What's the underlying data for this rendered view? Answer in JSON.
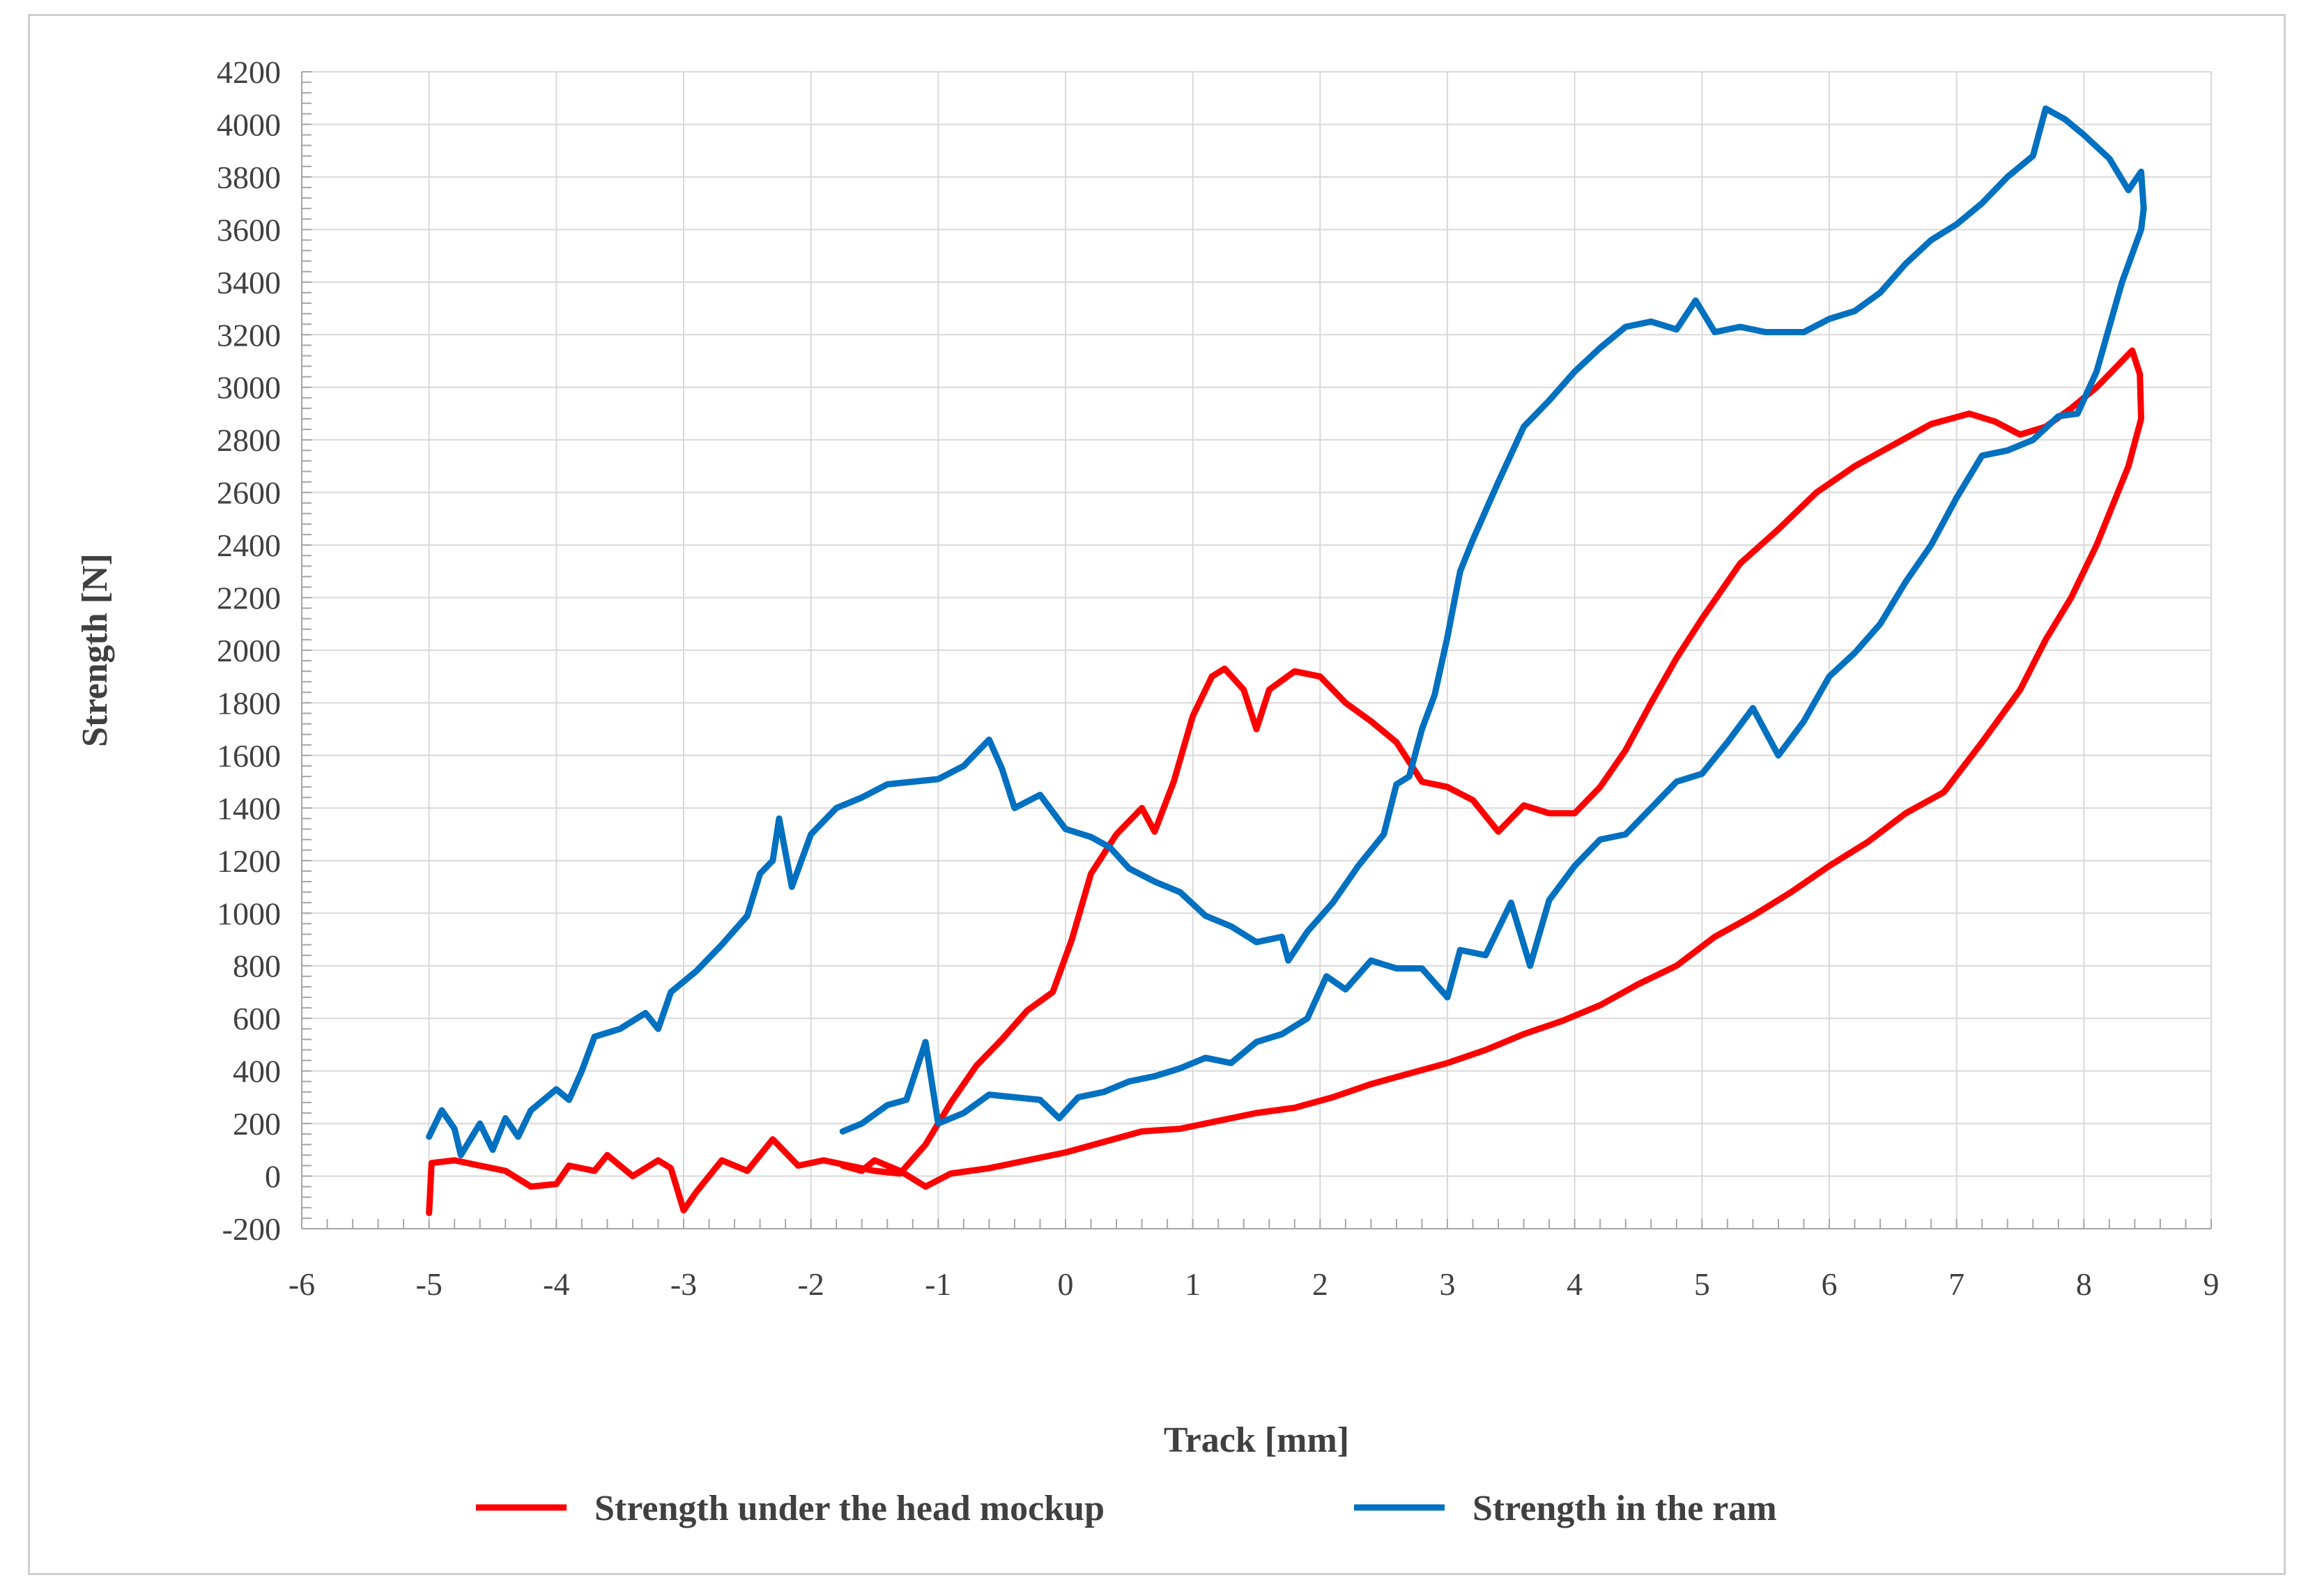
{
  "chart_data": {
    "type": "line",
    "title": "",
    "xlabel": "Track [mm]",
    "ylabel": "Strength [N]",
    "xlim": [
      -6,
      9
    ],
    "ylim": [
      -200,
      4200
    ],
    "x_ticks": [
      -6,
      -5,
      -4,
      -3,
      -2,
      -1,
      0,
      1,
      2,
      3,
      4,
      5,
      6,
      7,
      8,
      9
    ],
    "y_ticks": [
      -200,
      0,
      200,
      400,
      600,
      800,
      1000,
      1200,
      1400,
      1600,
      1800,
      2000,
      2200,
      2400,
      2600,
      2800,
      3000,
      3200,
      3400,
      3600,
      3800,
      4000,
      4200
    ],
    "grid": true,
    "legend": "bottom",
    "series": [
      {
        "name": "Strength under the head mockup",
        "color": "#ff0000",
        "points": [
          [
            -5.0,
            -140
          ],
          [
            -4.98,
            50
          ],
          [
            -4.8,
            60
          ],
          [
            -4.6,
            40
          ],
          [
            -4.4,
            20
          ],
          [
            -4.2,
            -40
          ],
          [
            -4.0,
            -30
          ],
          [
            -3.9,
            40
          ],
          [
            -3.7,
            20
          ],
          [
            -3.6,
            80
          ],
          [
            -3.4,
            0
          ],
          [
            -3.2,
            60
          ],
          [
            -3.1,
            30
          ],
          [
            -3.0,
            -130
          ],
          [
            -2.9,
            -60
          ],
          [
            -2.7,
            60
          ],
          [
            -2.5,
            20
          ],
          [
            -2.3,
            140
          ],
          [
            -2.1,
            40
          ],
          [
            -1.9,
            60
          ],
          [
            -1.7,
            40
          ],
          [
            -1.5,
            20
          ],
          [
            -1.3,
            10
          ],
          [
            -1.1,
            120
          ],
          [
            -0.9,
            280
          ],
          [
            -0.7,
            420
          ],
          [
            -0.5,
            520
          ],
          [
            -0.3,
            630
          ],
          [
            -0.1,
            700
          ],
          [
            0.05,
            900
          ],
          [
            0.2,
            1150
          ],
          [
            0.4,
            1300
          ],
          [
            0.6,
            1400
          ],
          [
            0.7,
            1310
          ],
          [
            0.85,
            1500
          ],
          [
            1.0,
            1750
          ],
          [
            1.15,
            1900
          ],
          [
            1.25,
            1930
          ],
          [
            1.4,
            1850
          ],
          [
            1.5,
            1700
          ],
          [
            1.6,
            1850
          ],
          [
            1.8,
            1920
          ],
          [
            2.0,
            1900
          ],
          [
            2.2,
            1800
          ],
          [
            2.4,
            1730
          ],
          [
            2.6,
            1650
          ],
          [
            2.8,
            1500
          ],
          [
            3.0,
            1480
          ],
          [
            3.2,
            1430
          ],
          [
            3.4,
            1310
          ],
          [
            3.6,
            1410
          ],
          [
            3.8,
            1380
          ],
          [
            4.0,
            1380
          ],
          [
            4.2,
            1480
          ],
          [
            4.4,
            1620
          ],
          [
            4.6,
            1800
          ],
          [
            4.8,
            1970
          ],
          [
            5.0,
            2120
          ],
          [
            5.3,
            2330
          ],
          [
            5.6,
            2460
          ],
          [
            5.9,
            2600
          ],
          [
            6.2,
            2700
          ],
          [
            6.5,
            2780
          ],
          [
            6.8,
            2860
          ],
          [
            7.1,
            2900
          ],
          [
            7.3,
            2870
          ],
          [
            7.5,
            2820
          ],
          [
            7.7,
            2850
          ],
          [
            7.9,
            2920
          ],
          [
            8.1,
            3000
          ],
          [
            8.3,
            3100
          ],
          [
            8.38,
            3140
          ],
          [
            8.44,
            3050
          ],
          [
            8.45,
            2880
          ],
          [
            8.35,
            2700
          ],
          [
            8.1,
            2400
          ],
          [
            7.9,
            2200
          ],
          [
            7.7,
            2040
          ],
          [
            7.5,
            1850
          ],
          [
            7.2,
            1650
          ],
          [
            6.9,
            1460
          ],
          [
            6.6,
            1380
          ],
          [
            6.3,
            1270
          ],
          [
            6.0,
            1180
          ],
          [
            5.7,
            1080
          ],
          [
            5.4,
            990
          ],
          [
            5.1,
            910
          ],
          [
            4.8,
            800
          ],
          [
            4.5,
            730
          ],
          [
            4.2,
            650
          ],
          [
            3.9,
            590
          ],
          [
            3.6,
            540
          ],
          [
            3.3,
            480
          ],
          [
            3.0,
            430
          ],
          [
            2.7,
            390
          ],
          [
            2.4,
            350
          ],
          [
            2.1,
            300
          ],
          [
            1.8,
            260
          ],
          [
            1.5,
            240
          ],
          [
            1.2,
            210
          ],
          [
            0.9,
            180
          ],
          [
            0.6,
            170
          ],
          [
            0.3,
            130
          ],
          [
            0.0,
            90
          ],
          [
            -0.3,
            60
          ],
          [
            -0.6,
            30
          ],
          [
            -0.9,
            10
          ],
          [
            -1.1,
            -40
          ],
          [
            -1.3,
            20
          ],
          [
            -1.5,
            60
          ],
          [
            -1.6,
            20
          ],
          [
            -1.75,
            40
          ]
        ]
      },
      {
        "name": "Strength in the ram",
        "color": "#0070c0",
        "points": [
          [
            -5.0,
            150
          ],
          [
            -4.9,
            250
          ],
          [
            -4.8,
            180
          ],
          [
            -4.75,
            80
          ],
          [
            -4.6,
            200
          ],
          [
            -4.5,
            100
          ],
          [
            -4.4,
            220
          ],
          [
            -4.3,
            150
          ],
          [
            -4.2,
            250
          ],
          [
            -4.0,
            330
          ],
          [
            -3.9,
            290
          ],
          [
            -3.8,
            400
          ],
          [
            -3.7,
            530
          ],
          [
            -3.5,
            560
          ],
          [
            -3.3,
            620
          ],
          [
            -3.2,
            560
          ],
          [
            -3.1,
            700
          ],
          [
            -2.9,
            780
          ],
          [
            -2.7,
            880
          ],
          [
            -2.5,
            990
          ],
          [
            -2.4,
            1150
          ],
          [
            -2.3,
            1200
          ],
          [
            -2.25,
            1360
          ],
          [
            -2.15,
            1100
          ],
          [
            -2.0,
            1300
          ],
          [
            -1.8,
            1400
          ],
          [
            -1.6,
            1440
          ],
          [
            -1.4,
            1490
          ],
          [
            -1.2,
            1500
          ],
          [
            -1.0,
            1510
          ],
          [
            -0.8,
            1560
          ],
          [
            -0.6,
            1660
          ],
          [
            -0.5,
            1550
          ],
          [
            -0.4,
            1400
          ],
          [
            -0.2,
            1450
          ],
          [
            0.0,
            1320
          ],
          [
            0.2,
            1290
          ],
          [
            0.35,
            1250
          ],
          [
            0.5,
            1170
          ],
          [
            0.7,
            1120
          ],
          [
            0.9,
            1080
          ],
          [
            1.1,
            990
          ],
          [
            1.3,
            950
          ],
          [
            1.5,
            890
          ],
          [
            1.7,
            910
          ],
          [
            1.75,
            820
          ],
          [
            1.9,
            930
          ],
          [
            2.1,
            1040
          ],
          [
            2.3,
            1180
          ],
          [
            2.5,
            1300
          ],
          [
            2.6,
            1490
          ],
          [
            2.7,
            1520
          ],
          [
            2.8,
            1700
          ],
          [
            2.9,
            1830
          ],
          [
            3.0,
            2050
          ],
          [
            3.1,
            2300
          ],
          [
            3.2,
            2420
          ],
          [
            3.4,
            2640
          ],
          [
            3.6,
            2850
          ],
          [
            3.8,
            2950
          ],
          [
            4.0,
            3060
          ],
          [
            4.2,
            3150
          ],
          [
            4.4,
            3230
          ],
          [
            4.6,
            3250
          ],
          [
            4.8,
            3220
          ],
          [
            4.95,
            3330
          ],
          [
            5.1,
            3210
          ],
          [
            5.3,
            3230
          ],
          [
            5.5,
            3210
          ],
          [
            5.8,
            3210
          ],
          [
            6.0,
            3260
          ],
          [
            6.2,
            3290
          ],
          [
            6.4,
            3360
          ],
          [
            6.6,
            3470
          ],
          [
            6.8,
            3560
          ],
          [
            7.0,
            3620
          ],
          [
            7.2,
            3700
          ],
          [
            7.4,
            3800
          ],
          [
            7.6,
            3880
          ],
          [
            7.7,
            4060
          ],
          [
            7.85,
            4020
          ],
          [
            8.0,
            3960
          ],
          [
            8.2,
            3870
          ],
          [
            8.35,
            3750
          ],
          [
            8.45,
            3820
          ],
          [
            8.47,
            3680
          ],
          [
            8.45,
            3600
          ],
          [
            8.3,
            3400
          ],
          [
            8.1,
            3060
          ],
          [
            7.95,
            2900
          ],
          [
            7.8,
            2890
          ],
          [
            7.6,
            2800
          ],
          [
            7.4,
            2760
          ],
          [
            7.2,
            2740
          ],
          [
            7.0,
            2580
          ],
          [
            6.8,
            2400
          ],
          [
            6.6,
            2260
          ],
          [
            6.4,
            2100
          ],
          [
            6.2,
            1990
          ],
          [
            6.0,
            1900
          ],
          [
            5.8,
            1730
          ],
          [
            5.6,
            1600
          ],
          [
            5.4,
            1780
          ],
          [
            5.2,
            1650
          ],
          [
            5.0,
            1530
          ],
          [
            4.8,
            1500
          ],
          [
            4.6,
            1400
          ],
          [
            4.4,
            1300
          ],
          [
            4.2,
            1280
          ],
          [
            4.0,
            1180
          ],
          [
            3.8,
            1050
          ],
          [
            3.65,
            800
          ],
          [
            3.5,
            1040
          ],
          [
            3.3,
            840
          ],
          [
            3.1,
            860
          ],
          [
            3.0,
            680
          ],
          [
            2.8,
            790
          ],
          [
            2.6,
            790
          ],
          [
            2.4,
            820
          ],
          [
            2.2,
            710
          ],
          [
            2.05,
            760
          ],
          [
            1.9,
            600
          ],
          [
            1.7,
            540
          ],
          [
            1.5,
            510
          ],
          [
            1.3,
            430
          ],
          [
            1.1,
            450
          ],
          [
            0.9,
            410
          ],
          [
            0.7,
            380
          ],
          [
            0.5,
            360
          ],
          [
            0.3,
            320
          ],
          [
            0.1,
            300
          ],
          [
            -0.05,
            220
          ],
          [
            -0.2,
            290
          ],
          [
            -0.4,
            300
          ],
          [
            -0.6,
            310
          ],
          [
            -0.8,
            240
          ],
          [
            -1.0,
            200
          ],
          [
            -1.1,
            510
          ],
          [
            -1.25,
            290
          ],
          [
            -1.4,
            270
          ],
          [
            -1.6,
            200
          ],
          [
            -1.75,
            170
          ]
        ]
      }
    ]
  }
}
